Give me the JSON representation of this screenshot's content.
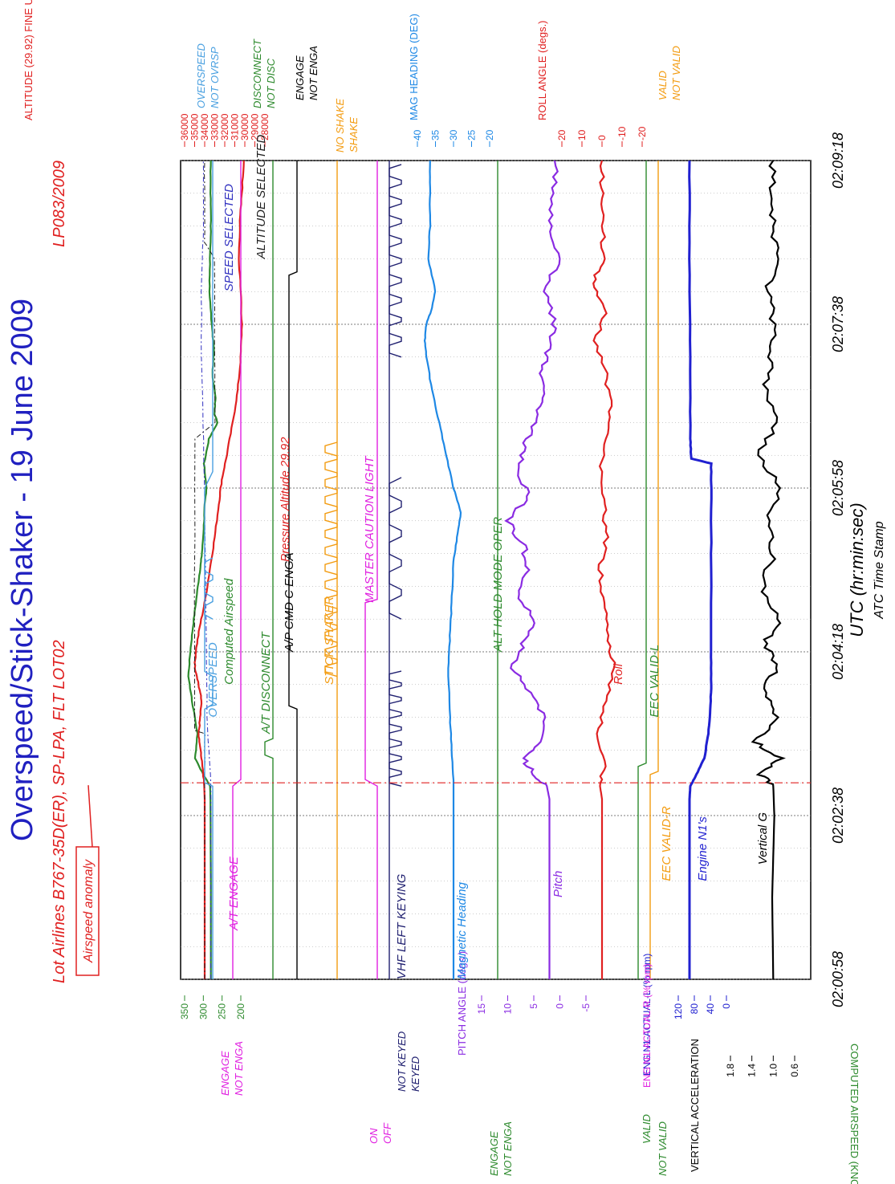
{
  "chart_data": {
    "type": "line",
    "title": "Overspeed/Stick-Shaker - 19 June 2009",
    "subtitle": "Lot Airlines B767-35D(ER), SP-LPA, FLT LOT02",
    "report_id": "LP083/2009",
    "xlabel": "UTC (hr:min:sec)",
    "xlabel2": "ATC Time Stamp",
    "x_ticks": [
      "02:00:58",
      "02:02:38",
      "02:04:18",
      "02:05:58",
      "02:07:38",
      "02:09:18"
    ],
    "x_range_seconds": [
      0,
      500
    ],
    "grid": true,
    "annotation": {
      "label": "Airspeed anomaly",
      "x": 120
    },
    "axes": {
      "airspeed": {
        "label": "COMPUTED AIRSPEED (KNOTS)",
        "ticks": [
          "350",
          "300",
          "250",
          "200"
        ],
        "range": [
          200,
          350
        ],
        "color": "#2d8a2d"
      },
      "altitude": {
        "label": "ALTITUDE (29.92) FINE Unwrap (FEET)",
        "ticks": [
          "36000",
          "35000",
          "34000",
          "33000",
          "32000",
          "31000",
          "30000",
          "29000",
          "28000"
        ],
        "range": [
          28000,
          36000
        ],
        "color": "#e02020"
      },
      "pitch": {
        "label": "PITCH ANGLE (degs.)",
        "ticks": [
          "15",
          "10",
          "5",
          "0",
          "-5"
        ],
        "range": [
          -5,
          15
        ],
        "color": "#8a2be2"
      },
      "mag_heading": {
        "label": "MAG HEADING (DEG)",
        "ticks": [
          "20",
          "25",
          "30",
          "35",
          "40"
        ],
        "range": [
          20,
          40
        ],
        "color": "#1e88e5"
      },
      "roll": {
        "label": "ROLL ANGLE (degs.)",
        "ticks": [
          "-20",
          "-10",
          "0",
          "10",
          "20"
        ],
        "range": [
          -20,
          20
        ],
        "color": "#e02020"
      },
      "n1": {
        "label1": "ENG N1-ACTUAL-L (% rpm)",
        "label2": "ENG N1-ACTUAL-R (% rpm)",
        "ticks": [
          "120",
          "80",
          "40",
          "0"
        ],
        "range": [
          0,
          120
        ],
        "color": "#2020d0"
      },
      "vert_acc": {
        "label": "VERTICAL ACCELERATION",
        "ticks": [
          "1.8",
          "1.4",
          "1.0",
          "0.6"
        ],
        "range": [
          0.6,
          1.8
        ],
        "color": "#000000"
      }
    },
    "discrete_labels": {
      "overspeed_hi": "OVERSPEED",
      "overspeed_lo": "NOT OVRSP",
      "disc_hi": "DISCONNECT",
      "disc_lo": "NOT DISC",
      "ap_hi": "ENGAGE",
      "ap_lo": "NOT ENGA",
      "shaker_hi": "NO SHAKE",
      "shaker_lo": "SHAKE",
      "eec_hi": "VALID",
      "eec_lo": "NOT VALID",
      "at_hi": "ENGAGE",
      "at_lo": "NOT ENGA",
      "vhf_hi": "NOT KEYED",
      "vhf_lo": "KEYED",
      "caution_hi": "ON",
      "caution_lo": "OFF",
      "alth_hi": "ENGAGE",
      "alth_lo": "NOT ENGA",
      "eecl_hi": "VALID",
      "eecl_lo": "NOT VALID"
    },
    "series": [
      {
        "name": "Computed Airspeed",
        "axis": "airspeed",
        "color": "#2d8a2d",
        "x": [
          0,
          60,
          110,
          118,
          125,
          135,
          150,
          170,
          185,
          200,
          215,
          230,
          245,
          255,
          265,
          280,
          290,
          300,
          315,
          330,
          340,
          345,
          355,
          370,
          385,
          400,
          420,
          440,
          460,
          480,
          500
        ],
        "values": [
          280,
          280,
          281,
          282,
          300,
          322,
          316,
          330,
          340,
          335,
          328,
          320,
          312,
          306,
          302,
          298,
          296,
          292,
          298,
          285,
          262,
          270,
          268,
          276,
          272,
          278,
          284,
          282,
          280,
          281,
          280
        ]
      },
      {
        "name": "Pressure Altitude 29.92",
        "axis": "altitude",
        "color": "#e02020",
        "x": [
          0,
          60,
          110,
          118,
          130,
          140,
          150,
          160,
          170,
          180,
          190,
          200,
          215,
          230,
          250,
          270,
          290,
          305,
          320,
          340,
          360,
          380,
          400,
          420,
          440,
          460,
          480,
          500
        ],
        "values": [
          34000,
          34000,
          34000,
          34050,
          34200,
          34400,
          34600,
          34450,
          34300,
          34600,
          35000,
          34900,
          34500,
          34000,
          33500,
          33000,
          32600,
          32300,
          31800,
          31200,
          30700,
          30400,
          30300,
          30400,
          30600,
          30500,
          30300,
          30100
        ]
      },
      {
        "name": "SPEED SELECTED",
        "axis": "airspeed",
        "color": "#3030c0",
        "x": [
          0,
          118,
          160,
          200,
          280,
          330,
          380,
          420,
          460,
          500
        ],
        "values": [
          280,
          280,
          290,
          292,
          296,
          300,
          305,
          305,
          300,
          300
        ]
      },
      {
        "name": "ALTITUDE SELECTED",
        "axis": "altitude",
        "color": "#202020",
        "x": [
          0,
          118,
          150,
          152,
          330,
          340,
          440,
          450,
          500
        ],
        "values": [
          34000,
          34000,
          34000,
          35000,
          35000,
          33000,
          33000,
          34000,
          34000
        ]
      },
      {
        "name": "Magnetic Heading",
        "axis": "mag_heading",
        "color": "#1e88e5",
        "x": [
          0,
          60,
          110,
          118,
          140,
          160,
          190,
          210,
          230,
          255,
          270,
          285,
          300,
          320,
          340,
          360,
          380,
          390,
          400,
          410,
          420,
          440,
          460,
          480,
          500
        ],
        "values": [
          30,
          30,
          30,
          30,
          30.5,
          31,
          31.5,
          31,
          30.5,
          30,
          29,
          28,
          30,
          32,
          34,
          36,
          37.5,
          38,
          37.5,
          36,
          35,
          37,
          36.5,
          36.5,
          36.5
        ]
      },
      {
        "name": "Pitch",
        "axis": "pitch",
        "color": "#8a2be2",
        "x": [
          0,
          60,
          110,
          118,
          125,
          135,
          145,
          160,
          175,
          190,
          205,
          220,
          235,
          250,
          265,
          280,
          295,
          310,
          325,
          340,
          355,
          370,
          385,
          400,
          420,
          440,
          460,
          480,
          500
        ],
        "values": [
          2,
          2,
          2,
          2.5,
          5,
          7,
          4,
          3,
          6,
          9,
          7,
          5,
          8,
          6,
          7,
          10,
          6,
          8,
          7,
          5,
          3,
          4,
          2,
          1,
          3,
          0,
          2,
          1,
          1
        ]
      },
      {
        "name": "Roll",
        "axis": "roll",
        "color": "#e02020",
        "x": [
          0,
          60,
          110,
          118,
          130,
          150,
          170,
          190,
          210,
          230,
          250,
          270,
          290,
          310,
          330,
          350,
          370,
          390,
          410,
          425,
          440,
          460,
          480,
          500
        ],
        "values": [
          0,
          0,
          0,
          1,
          -1,
          2,
          -2,
          -6,
          -3,
          -1,
          1,
          -2,
          -1,
          1,
          -2,
          -4,
          -2,
          3,
          -2,
          5,
          -1,
          0,
          0,
          0
        ]
      },
      {
        "name": "Engine N1's",
        "axis": "n1",
        "color": "#2020d0",
        "x": [
          0,
          110,
          118,
          125,
          135,
          150,
          165,
          180,
          200,
          260,
          300,
          315,
          318,
          330,
          380,
          440,
          500
        ],
        "values": [
          92,
          92,
          90,
          75,
          55,
          45,
          40,
          38,
          38,
          38,
          38,
          38,
          88,
          90,
          90,
          92,
          92
        ]
      },
      {
        "name": "Vertical G",
        "axis": "vert_acc",
        "color": "#000000",
        "x": [
          0,
          50,
          100,
          118,
          125,
          135,
          145,
          160,
          175,
          190,
          205,
          220,
          240,
          260,
          280,
          300,
          320,
          340,
          360,
          380,
          400,
          420,
          440,
          460,
          480,
          500
        ],
        "values": [
          1.0,
          1.02,
          0.98,
          1.0,
          1.25,
          0.85,
          1.35,
          0.9,
          1.2,
          0.95,
          1.15,
          0.9,
          1.2,
          1.0,
          1.1,
          0.85,
          1.3,
          0.9,
          1.15,
          1.05,
          1.0,
          1.1,
          0.95,
          1.0,
          1.0,
          1.0
        ]
      }
    ],
    "discretes": [
      {
        "name": "OVERSPEED",
        "color": "#4aa0e0",
        "x": [
          0,
          118,
          120,
          165,
          168,
          185,
          188,
          240,
          300,
          310,
          500
        ],
        "state": [
          0,
          0,
          1,
          1,
          0,
          0,
          1,
          1,
          1,
          0,
          0
        ]
      },
      {
        "name": "A/T ENGAGE",
        "color": "#e020e0",
        "x": [
          0,
          118,
          122,
          500
        ],
        "state": [
          1,
          1,
          0,
          0
        ]
      },
      {
        "name": "A/T DISCONNECT",
        "color": "#2d8a2d",
        "x": [
          0,
          135,
          137,
          145,
          147,
          500
        ],
        "state": [
          0,
          0,
          1,
          1,
          0,
          0
        ]
      },
      {
        "name": "A/P CMD C ENGA",
        "color": "#000000",
        "x": [
          0,
          165,
          167,
          430,
          432,
          500
        ],
        "state": [
          0,
          0,
          1,
          1,
          0,
          0
        ]
      },
      {
        "name": "STICK SHAKER",
        "color": "#f39c12",
        "x": [
          0,
          185,
          330,
          332,
          500
        ],
        "state": [
          0,
          0,
          0,
          0,
          0
        ]
      },
      {
        "name": "MASTER CAUTION LIGHT",
        "color": "#e020e0",
        "x": [
          0,
          118,
          122,
          230,
          232,
          500
        ],
        "state": [
          0,
          0,
          1,
          1,
          0,
          0
        ]
      },
      {
        "name": "VHF LEFT KEYING",
        "color": "#202070",
        "x": [
          0,
          118,
          500
        ],
        "state": [
          1,
          1,
          1
        ]
      },
      {
        "name": "ALT HOLD MODE OPER",
        "color": "#2d8a2d",
        "x": [
          0,
          500
        ],
        "state": [
          0,
          0
        ]
      },
      {
        "name": "EEC VALID-L",
        "color": "#2d8a2d",
        "x": [
          0,
          130,
          132,
          500
        ],
        "state": [
          1,
          1,
          0,
          0
        ]
      },
      {
        "name": "EEC VALID-R",
        "color": "#f39c12",
        "x": [
          0,
          125,
          127,
          500
        ],
        "state": [
          1,
          1,
          0,
          0
        ]
      }
    ]
  }
}
